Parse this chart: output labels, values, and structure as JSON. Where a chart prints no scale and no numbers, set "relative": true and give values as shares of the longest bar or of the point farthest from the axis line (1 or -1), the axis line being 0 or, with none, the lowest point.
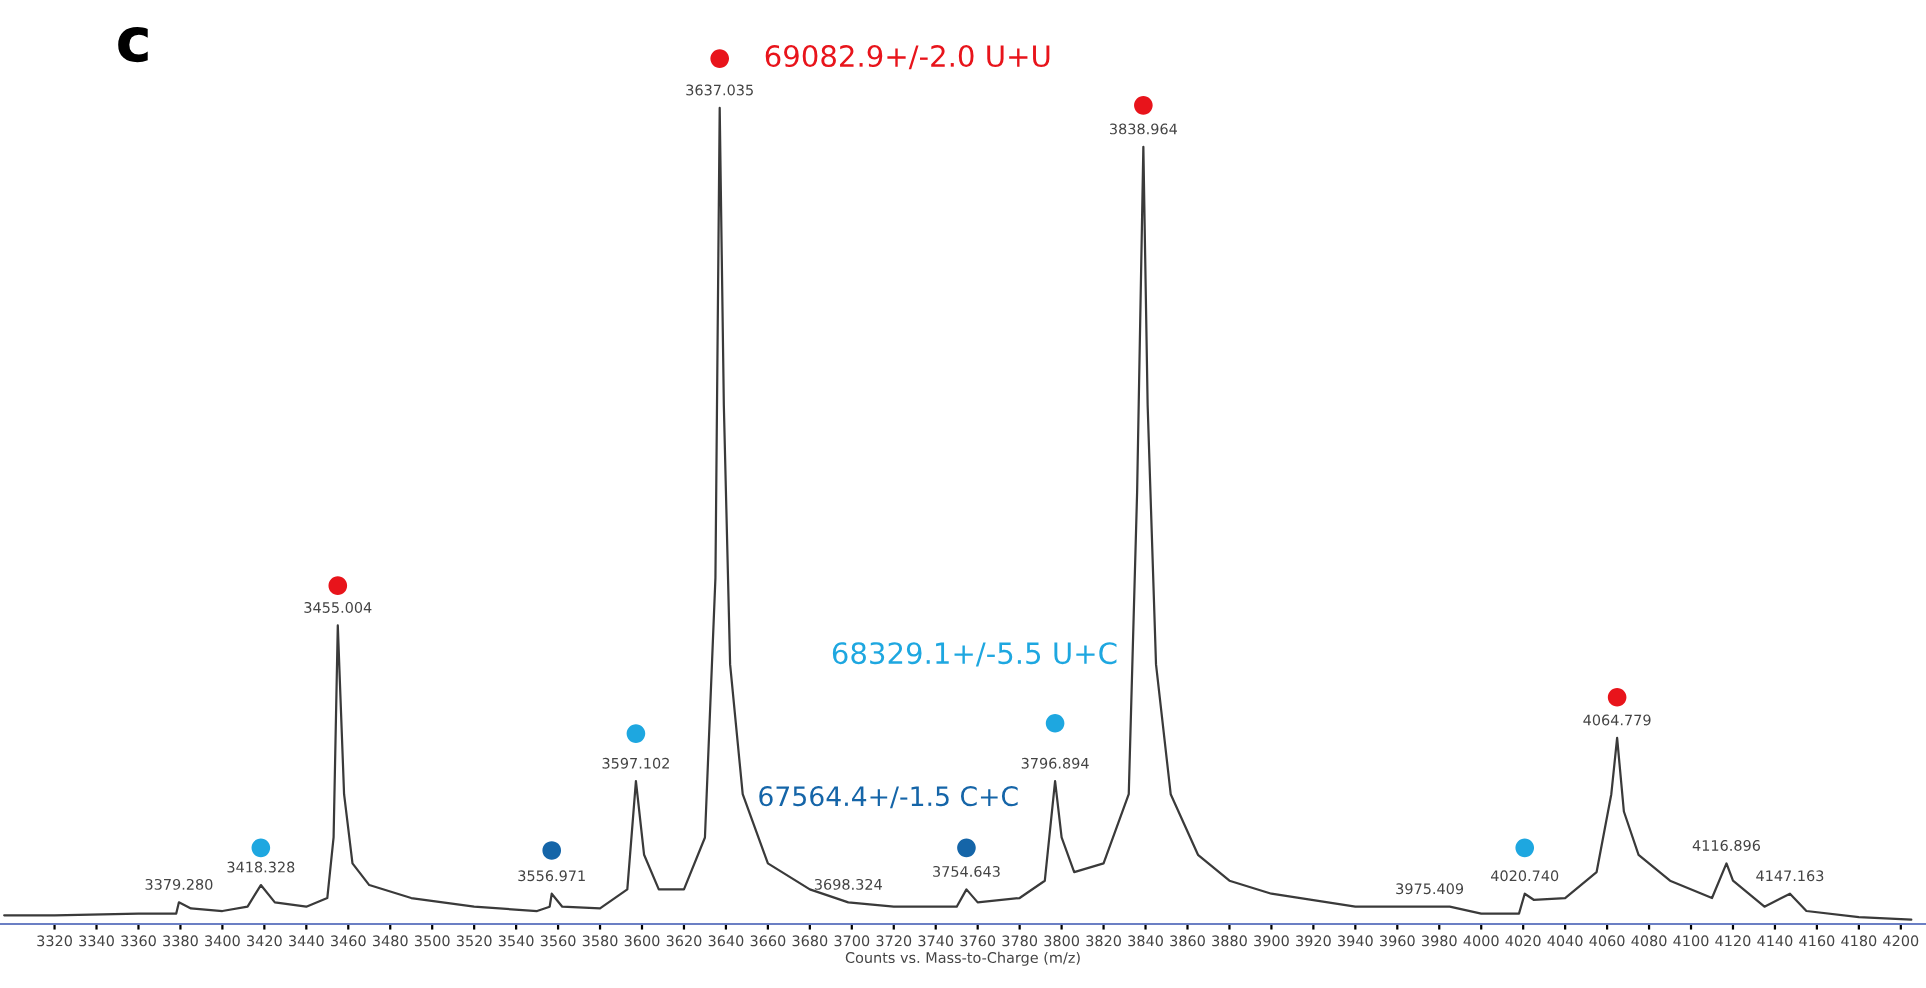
{
  "chart_data": {
    "type": "line",
    "relative": true,
    "xlabel": "Counts vs. Mass-to-Charge (m/z)",
    "xlim": [
      3294,
      4212
    ],
    "xticks": [
      3320,
      3340,
      3360,
      3380,
      3400,
      3420,
      3440,
      3460,
      3480,
      3500,
      3520,
      3540,
      3560,
      3580,
      3600,
      3620,
      3640,
      3660,
      3680,
      3700,
      3720,
      3740,
      3760,
      3780,
      3800,
      3820,
      3840,
      3860,
      3880,
      3900,
      3920,
      3940,
      3960,
      3980,
      4000,
      4020,
      4040,
      4060,
      4080,
      4100,
      4120,
      4140,
      4160,
      4180,
      4200
    ],
    "grid": false,
    "legend": false,
    "tick_labels": "x",
    "series": [
      {
        "type": "line",
        "color": "#3a3a3a",
        "marker": "none",
        "x": [
          3296,
          3320,
          3360,
          3378,
          3379.28,
          3385,
          3400,
          3412,
          3418.328,
          3425,
          3440,
          3450,
          3453,
          3455.004,
          3458,
          3462,
          3470,
          3490,
          3520,
          3550,
          3556,
          3556.971,
          3562,
          3580,
          3593,
          3597.102,
          3601,
          3608,
          3620,
          3630,
          3635,
          3637.035,
          3639,
          3642,
          3648,
          3660,
          3680,
          3698.324,
          3720,
          3750,
          3754.643,
          3760,
          3780,
          3792,
          3796.894,
          3800,
          3806,
          3820,
          3832,
          3836,
          3838.964,
          3841,
          3845,
          3852,
          3865,
          3880,
          3900,
          3940,
          3975.409,
          3985,
          4000,
          4018,
          4020.74,
          4025,
          4040,
          4055,
          4062,
          4064.779,
          4068,
          4075,
          4090,
          4110,
          4116.896,
          4120,
          4135,
          4147.163,
          4155,
          4180,
          4205
        ],
        "values": [
          0.01,
          0.01,
          0.012,
          0.012,
          0.025,
          0.018,
          0.015,
          0.02,
          0.045,
          0.025,
          0.02,
          0.03,
          0.1,
          0.345,
          0.15,
          0.07,
          0.045,
          0.03,
          0.02,
          0.015,
          0.02,
          0.035,
          0.02,
          0.018,
          0.04,
          0.165,
          0.08,
          0.04,
          0.04,
          0.1,
          0.4,
          0.943,
          0.6,
          0.3,
          0.15,
          0.07,
          0.04,
          0.025,
          0.02,
          0.02,
          0.04,
          0.025,
          0.03,
          0.05,
          0.165,
          0.1,
          0.06,
          0.07,
          0.15,
          0.5,
          0.898,
          0.6,
          0.3,
          0.15,
          0.08,
          0.05,
          0.035,
          0.02,
          0.02,
          0.02,
          0.012,
          0.012,
          0.035,
          0.028,
          0.03,
          0.06,
          0.15,
          0.215,
          0.13,
          0.08,
          0.05,
          0.03,
          0.07,
          0.05,
          0.02,
          0.035,
          0.015,
          0.008,
          0.005
        ]
      },
      {
        "type": "scatter",
        "name": "69082.9+/-2.0 U+U",
        "color": "#e8141b",
        "marker": "circle",
        "x": [
          3455.004,
          3637.035,
          3838.964,
          4064.779
        ],
        "values": [
          0.391,
          1.0,
          0.946,
          0.262
        ]
      },
      {
        "type": "scatter",
        "name": "68329.1+/-5.5 U+C",
        "color": "#1ea7e0",
        "marker": "circle",
        "x": [
          3418.328,
          3597.102,
          3796.894,
          4020.74
        ],
        "values": [
          0.088,
          0.22,
          0.232,
          0.088
        ]
      },
      {
        "type": "scatter",
        "name": "67564.4+/-1.5 C+C",
        "color": "#1565a8",
        "marker": "circle",
        "x": [
          3556.971,
          3754.643
        ],
        "values": [
          0.085,
          0.088
        ]
      }
    ],
    "annotations": [
      "c",
      {
        "text": "3379.280",
        "x": 3379.28,
        "y": 0.025
      },
      {
        "text": "3418.328",
        "x": 3418.328,
        "y": 0.045
      },
      {
        "text": "3455.004",
        "x": 3455.004,
        "y": 0.345
      },
      {
        "text": "3556.971",
        "x": 3556.971,
        "y": 0.035
      },
      {
        "text": "3597.102",
        "x": 3597.102,
        "y": 0.165
      },
      {
        "text": "3637.035",
        "x": 3637.035,
        "y": 0.943
      },
      {
        "text": "3698.324",
        "x": 3698.324,
        "y": 0.025
      },
      {
        "text": "3754.643",
        "x": 3754.643,
        "y": 0.04
      },
      {
        "text": "3796.894",
        "x": 3796.894,
        "y": 0.165
      },
      {
        "text": "3838.964",
        "x": 3838.964,
        "y": 0.898
      },
      {
        "text": "3975.409",
        "x": 3975.409,
        "y": 0.02
      },
      {
        "text": "4020.740",
        "x": 4020.74,
        "y": 0.035
      },
      {
        "text": "4064.779",
        "x": 4064.779,
        "y": 0.215
      },
      {
        "text": "4116.896",
        "x": 4116.896,
        "y": 0.07
      },
      {
        "text": "4147.163",
        "x": 4147.163,
        "y": 0.035
      }
    ]
  }
}
